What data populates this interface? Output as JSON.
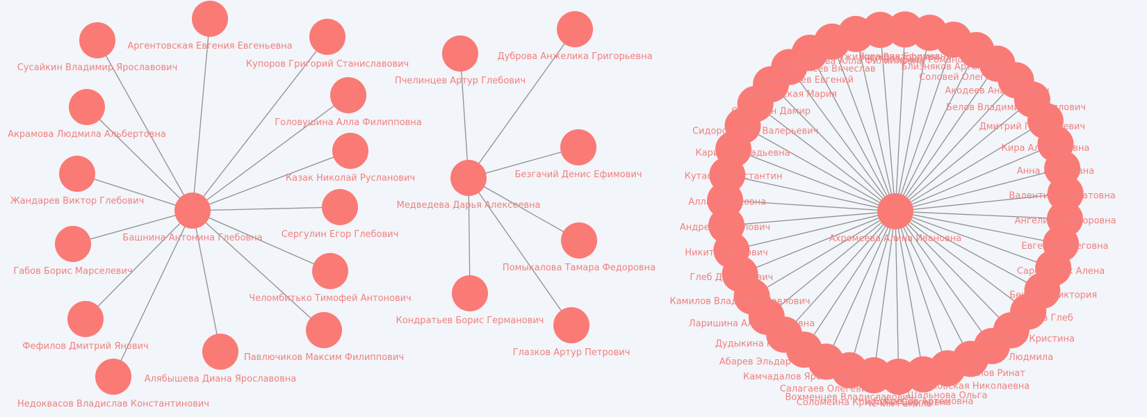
{
  "diagram": {
    "type": "network-graph",
    "background_color": "#f2f5f9",
    "node_color": "#fa7a76",
    "label_color": "#f08080",
    "edge_color": "#8f8f8f"
  },
  "clusters": [
    {
      "hub": "Башнина Антонина Глебовна",
      "leaves": [
        "Аргентовская Евгения Евгеньевна",
        "Купоров Григорий Станиславович",
        "Головушина Алла Филипповна",
        "Казак Николай Русланович",
        "Сергулин Егор Глебович",
        "Челомбитько Тимофей Антонович",
        "Павлючиков Максим Филиппович",
        "Алябышева Диана Ярославовна",
        "Недоквасов Владислав Константинович",
        "Фефилов Дмитрий Янович",
        "Габов Борис Марселевич",
        "Жандарев Виктор Глебович",
        "Акрамова Людмила Альбертовна",
        "Сусайкин Владимир Ярославович"
      ]
    },
    {
      "hub": "Медведева Дарья Алексеевна",
      "leaves": [
        "Пчелинцев Артур Глебович",
        "Дуброва Анжелика Григорьевна",
        "Безгачий Денис Ефимович",
        "Помыкалова Тамара Федоровна",
        "Глазков Артур Петрович",
        "Кондратьев Борис Германович"
      ]
    },
    {
      "hub": "Ахромеева Алина Ивановна",
      "leaves": [
        "Кутасов Константин",
        "Карина Аркадьевна",
        "Сидоров Иван Валерьевич",
        "Старухин Дамир",
        "Андриевская Мария",
        "Алиничев Евгений",
        "Яникеев Вячеслав",
        "Щурупова Алла Филипповна",
        "Нетужилова Викторовна",
        "Ящукова Ефимовна",
        "Чикирева Романовна",
        "Близняков Артемович",
        "Соловей Олег Павлович",
        "Акодеев Анатольевич",
        "Белов Владимир Кириллович",
        "Дмитрий Григорьевич",
        "Кира Альбертовна",
        "Анна Антоновна",
        "Валентина Маратовна",
        "Ангелина Федоровна",
        "Евгения Олеговна",
        "Сарсадских Алена",
        "Бекрева Виктория",
        "Ковшов Глеб",
        "Аксанова Кристина",
        "Думлер Людмила",
        "Тяжлов Ринат",
        "Шовковская Николаевна",
        "Шальнова Ольга",
        "Бобрецов Артемовна",
        "Чечин Рамиль",
        "Соломеина Кристина Сергеевна",
        "Вохменцев Владиславович",
        "Салагаев Олегевич",
        "Камчадалов Ярославович",
        "Абарев Эльдар Робертович",
        "Дудыкина Романовна",
        "Ларишина Александровна",
        "Камилов Владимир Павлович",
        "Глеб Даниилович",
        "Никита Петрович",
        "Андрей Данилович",
        "Алла Денисовна"
      ]
    }
  ]
}
